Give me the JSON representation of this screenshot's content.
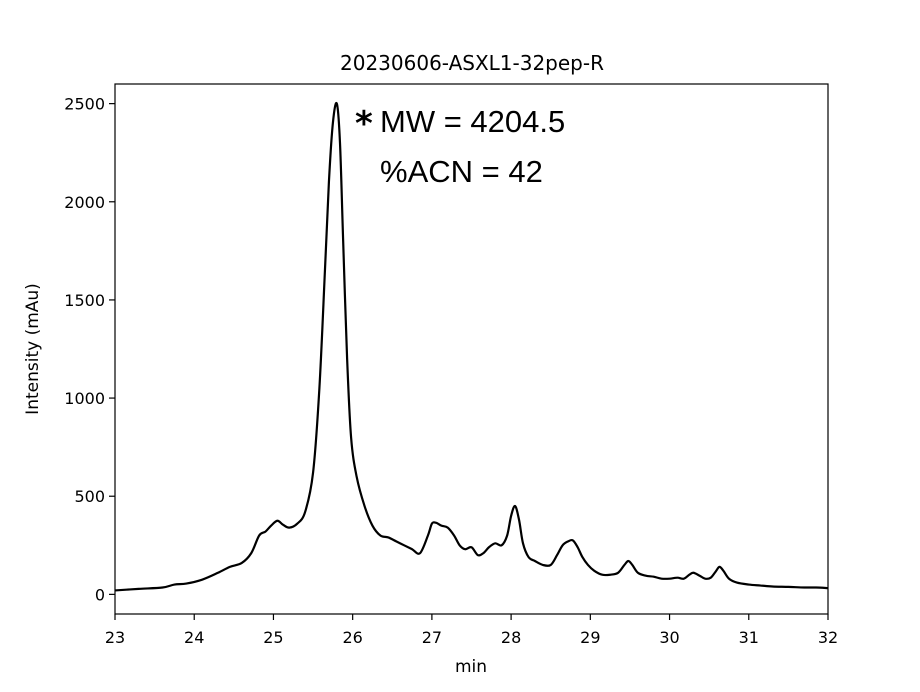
{
  "chart_data": {
    "type": "line",
    "title": "20230606-ASXL1-32pep-R",
    "xlabel": "min",
    "ylabel": "Intensity (mAu)",
    "xlim": [
      23,
      32
    ],
    "ylim": [
      -100,
      2600
    ],
    "xticks": [
      23,
      24,
      25,
      26,
      27,
      28,
      29,
      30,
      31,
      32
    ],
    "yticks": [
      0,
      500,
      1000,
      1500,
      2000,
      2500
    ],
    "grid": false,
    "line_color": "#000000",
    "annotations": {
      "marker": "*",
      "line1": "MW = 4204.5",
      "line2": "%ACN = 42"
    },
    "series": [
      {
        "x": [
          23.0,
          23.3,
          23.6,
          23.75,
          23.9,
          24.1,
          24.3,
          24.45,
          24.6,
          24.72,
          24.82,
          24.9,
          24.97,
          25.05,
          25.12,
          25.2,
          25.3,
          25.4,
          25.5,
          25.58,
          25.65,
          25.7,
          25.75,
          25.8,
          25.84,
          25.88,
          25.93,
          25.98,
          26.05,
          26.15,
          26.25,
          26.35,
          26.45,
          26.55,
          26.65,
          26.75,
          26.85,
          26.95,
          27.0,
          27.05,
          27.12,
          27.2,
          27.28,
          27.35,
          27.42,
          27.5,
          27.58,
          27.65,
          27.72,
          27.8,
          27.88,
          27.95,
          28.0,
          28.05,
          28.1,
          28.15,
          28.22,
          28.3,
          28.4,
          28.5,
          28.58,
          28.65,
          28.72,
          28.78,
          28.84,
          28.9,
          28.97,
          29.05,
          29.15,
          29.25,
          29.35,
          29.43,
          29.48,
          29.53,
          29.6,
          29.7,
          29.8,
          29.9,
          30.0,
          30.1,
          30.18,
          30.25,
          30.3,
          30.38,
          30.45,
          30.52,
          30.58,
          30.63,
          30.68,
          30.75,
          30.85,
          31.0,
          31.15,
          31.3,
          31.5,
          31.7,
          31.85,
          32.0
        ],
        "y": [
          20,
          28,
          35,
          50,
          55,
          75,
          110,
          140,
          160,
          210,
          300,
          320,
          350,
          375,
          355,
          340,
          360,
          420,
          620,
          1050,
          1650,
          2100,
          2400,
          2500,
          2300,
          1800,
          1200,
          800,
          600,
          450,
          350,
          300,
          290,
          270,
          250,
          230,
          210,
          300,
          360,
          365,
          350,
          340,
          300,
          250,
          230,
          240,
          200,
          210,
          240,
          260,
          250,
          300,
          400,
          450,
          380,
          260,
          190,
          170,
          150,
          150,
          200,
          250,
          270,
          275,
          240,
          190,
          150,
          120,
          100,
          100,
          110,
          150,
          170,
          150,
          110,
          95,
          90,
          80,
          80,
          85,
          80,
          100,
          110,
          95,
          80,
          85,
          115,
          140,
          120,
          80,
          60,
          50,
          45,
          40,
          38,
          35,
          35,
          32
        ]
      }
    ]
  }
}
